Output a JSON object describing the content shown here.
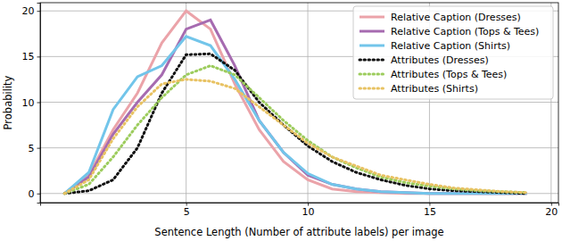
{
  "chart_data": {
    "type": "line",
    "x_label": "Sentence Length (Number of attribute labels) per image",
    "y_label": "Probability",
    "x": [
      0,
      1,
      2,
      3,
      4,
      5,
      6,
      7,
      8,
      9,
      10,
      11,
      12,
      13,
      14,
      15,
      16,
      17,
      18,
      19
    ],
    "series": [
      {
        "name": "Relative Caption (Dresses)",
        "color": "#eba3a9",
        "line_style": "solid",
        "values": [
          0,
          2,
          7,
          11,
          16.5,
          20,
          18,
          12,
          7,
          3.5,
          1.5,
          0.5,
          0.2,
          0.1,
          0,
          0,
          0,
          0,
          0,
          0
        ]
      },
      {
        "name": "Relative Caption (Tops & Tees)",
        "color": "#a66bb0",
        "line_style": "solid",
        "values": [
          0,
          1.8,
          6.5,
          10,
          13,
          18,
          19,
          14,
          8,
          4.5,
          2,
          1,
          0.5,
          0.2,
          0.1,
          0,
          0,
          0,
          0,
          0
        ]
      },
      {
        "name": "Relative Caption (Shirts)",
        "color": "#72c5ea",
        "line_style": "solid",
        "values": [
          0,
          2.3,
          9.2,
          12.8,
          14,
          17.2,
          16.2,
          12.5,
          8,
          4.5,
          2.2,
          1,
          0.5,
          0.2,
          0.1,
          0,
          0,
          0,
          0,
          0
        ]
      },
      {
        "name": "Attributes (Dresses)",
        "color": "#111111",
        "line_style": "dotted",
        "values": [
          0,
          0.3,
          1.5,
          5,
          11,
          15.2,
          15.3,
          13.5,
          10,
          7.5,
          5.2,
          3.5,
          2.3,
          1.5,
          0.9,
          0.5,
          0.3,
          0.2,
          0.1,
          0
        ]
      },
      {
        "name": "Attributes (Tops & Tees)",
        "color": "#9ccc5c",
        "line_style": "dotted",
        "values": [
          0,
          1,
          4,
          7.5,
          10.5,
          13,
          14,
          13,
          10.5,
          8,
          5.8,
          4,
          2.8,
          1.8,
          1.2,
          0.8,
          0.5,
          0.3,
          0.2,
          0.1
        ]
      },
      {
        "name": "Attributes (Shirts)",
        "color": "#e8c262",
        "line_style": "dotted",
        "values": [
          0,
          1.5,
          6,
          9.5,
          12,
          12.5,
          12.3,
          11.5,
          9.5,
          7.5,
          5.5,
          4,
          3,
          2,
          1.5,
          1,
          0.6,
          0.4,
          0.2,
          0.1
        ]
      }
    ],
    "xlim": [
      -1,
      20.3
    ],
    "xticks": [
      5,
      10,
      15,
      20
    ],
    "ylim": [
      -1,
      20.9
    ],
    "yticks": [
      0,
      5,
      10,
      15,
      20
    ],
    "grid": true,
    "legend": "upper right"
  }
}
